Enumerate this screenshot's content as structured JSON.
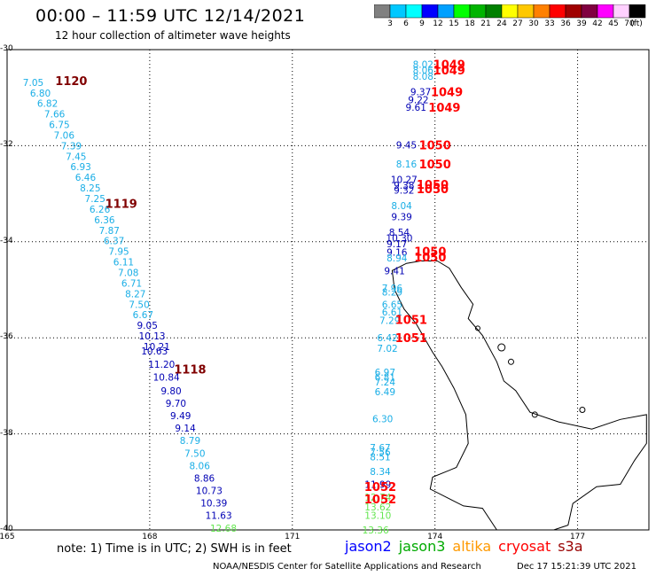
{
  "header": {
    "title": "00:00 – 11:59 UTC 12/14/2021",
    "subtitle": "12 hour collection of altimeter wave heights"
  },
  "colorbar": {
    "unit": "(ft)",
    "labels": [
      "3",
      "6",
      "9",
      "12",
      "15",
      "18",
      "21",
      "24",
      "27",
      "30",
      "33",
      "36",
      "39",
      "42",
      "45",
      "70"
    ],
    "colors": [
      "#808080",
      "#00c8ff",
      "#00ffff",
      "#0000ff",
      "#00a0ff",
      "#00ff00",
      "#00b400",
      "#008000",
      "#ffff00",
      "#ffc800",
      "#ff8000",
      "#ff0000",
      "#a00000",
      "#800040",
      "#ff00ff",
      "#ffd0ff",
      "#000000"
    ]
  },
  "axes": {
    "lat_labels": [
      "-30",
      "-32",
      "-34",
      "-36",
      "-38",
      "-40"
    ],
    "lon_labels": [
      "165",
      "168",
      "171",
      "174",
      "177"
    ]
  },
  "colors": {
    "light_blue": "#1aaee6",
    "blue": "#0000b4",
    "red": "#ff0000",
    "dark_red": "#800000",
    "green": "#64e650",
    "orange": "#ff9900",
    "jason2": "#0000ff",
    "jason3": "#00aa00",
    "altika": "#ff9900",
    "cryosat": "#ff0000",
    "s3a": "#990000"
  },
  "track_labels": [
    {
      "text": "1120",
      "lat": -30.65,
      "lon": 166.35,
      "color": "dark_red"
    },
    {
      "text": "1119",
      "lat": -33.2,
      "lon": 167.4,
      "color": "dark_red"
    },
    {
      "text": "1118",
      "lat": -36.65,
      "lon": 168.85,
      "color": "dark_red"
    },
    {
      "text": "1049",
      "lat": -30.3,
      "lon": 174.3,
      "color": "red"
    },
    {
      "text": "1049",
      "lat": -30.42,
      "lon": 174.3,
      "color": "red"
    },
    {
      "text": "1049",
      "lat": -30.88,
      "lon": 174.25,
      "color": "red"
    },
    {
      "text": "1049",
      "lat": -31.2,
      "lon": 174.2,
      "color": "red"
    },
    {
      "text": "1050",
      "lat": -31.98,
      "lon": 174.0,
      "color": "red"
    },
    {
      "text": "1050",
      "lat": -32.38,
      "lon": 174.0,
      "color": "red"
    },
    {
      "text": "1050",
      "lat": -32.8,
      "lon": 173.95,
      "color": "red"
    },
    {
      "text": "1050",
      "lat": -32.9,
      "lon": 173.95,
      "color": "red"
    },
    {
      "text": "1050",
      "lat": -34.2,
      "lon": 173.9,
      "color": "red"
    },
    {
      "text": "1050",
      "lat": -34.32,
      "lon": 173.9,
      "color": "red"
    },
    {
      "text": "1051",
      "lat": -35.62,
      "lon": 173.5,
      "color": "red"
    },
    {
      "text": "1051",
      "lat": -36.0,
      "lon": 173.5,
      "color": "red"
    },
    {
      "text": "1052",
      "lat": -39.1,
      "lon": 172.85,
      "color": "red"
    },
    {
      "text": "1052",
      "lat": -39.35,
      "lon": 172.85,
      "color": "red"
    }
  ],
  "points": [
    {
      "v": "7.05",
      "lat": -30.68,
      "lon": 165.55,
      "color": "light_blue"
    },
    {
      "v": "6.80",
      "lat": -30.9,
      "lon": 165.7,
      "color": "light_blue"
    },
    {
      "v": "6.82",
      "lat": -31.12,
      "lon": 165.85,
      "color": "light_blue"
    },
    {
      "v": "7.66",
      "lat": -31.34,
      "lon": 166.0,
      "color": "light_blue"
    },
    {
      "v": "6.75",
      "lat": -31.56,
      "lon": 166.1,
      "color": "light_blue"
    },
    {
      "v": "7.06",
      "lat": -31.78,
      "lon": 166.2,
      "color": "light_blue"
    },
    {
      "v": "7.39",
      "lat": -32.0,
      "lon": 166.35,
      "color": "light_blue"
    },
    {
      "v": "7.45",
      "lat": -32.22,
      "lon": 166.45,
      "color": "light_blue"
    },
    {
      "v": "6.93",
      "lat": -32.44,
      "lon": 166.55,
      "color": "light_blue"
    },
    {
      "v": "6.46",
      "lat": -32.66,
      "lon": 166.65,
      "color": "light_blue"
    },
    {
      "v": "8.25",
      "lat": -32.88,
      "lon": 166.75,
      "color": "light_blue"
    },
    {
      "v": "7.25",
      "lat": -33.1,
      "lon": 166.85,
      "color": "light_blue"
    },
    {
      "v": "6.26",
      "lat": -33.32,
      "lon": 166.95,
      "color": "light_blue"
    },
    {
      "v": "6.36",
      "lat": -33.54,
      "lon": 167.05,
      "color": "light_blue"
    },
    {
      "v": "7.87",
      "lat": -33.76,
      "lon": 167.15,
      "color": "light_blue"
    },
    {
      "v": "6.37",
      "lat": -33.98,
      "lon": 167.25,
      "color": "light_blue"
    },
    {
      "v": "7.95",
      "lat": -34.2,
      "lon": 167.35,
      "color": "light_blue"
    },
    {
      "v": "6.11",
      "lat": -34.42,
      "lon": 167.45,
      "color": "light_blue"
    },
    {
      "v": "7.08",
      "lat": -34.64,
      "lon": 167.55,
      "color": "light_blue"
    },
    {
      "v": "6.71",
      "lat": -34.86,
      "lon": 167.62,
      "color": "light_blue"
    },
    {
      "v": "8.27",
      "lat": -35.08,
      "lon": 167.7,
      "color": "light_blue"
    },
    {
      "v": "7.50",
      "lat": -35.3,
      "lon": 167.78,
      "color": "light_blue"
    },
    {
      "v": "6.67",
      "lat": -35.52,
      "lon": 167.86,
      "color": "light_blue"
    },
    {
      "v": "9.05",
      "lat": -35.74,
      "lon": 167.95,
      "color": "blue"
    },
    {
      "v": "10.13",
      "lat": -35.96,
      "lon": 168.05,
      "color": "blue"
    },
    {
      "v": "10.21",
      "lat": -36.18,
      "lon": 168.15,
      "color": "blue"
    },
    {
      "v": "10.63",
      "lat": -36.27,
      "lon": 168.1,
      "color": "blue"
    },
    {
      "v": "11.20",
      "lat": -36.55,
      "lon": 168.25,
      "color": "blue"
    },
    {
      "v": "10.84",
      "lat": -36.82,
      "lon": 168.35,
      "color": "blue"
    },
    {
      "v": "9.80",
      "lat": -37.1,
      "lon": 168.45,
      "color": "blue"
    },
    {
      "v": "9.70",
      "lat": -37.36,
      "lon": 168.55,
      "color": "blue"
    },
    {
      "v": "9.49",
      "lat": -37.62,
      "lon": 168.65,
      "color": "blue"
    },
    {
      "v": "9.14",
      "lat": -37.88,
      "lon": 168.75,
      "color": "blue"
    },
    {
      "v": "8.79",
      "lat": -38.14,
      "lon": 168.85,
      "color": "light_blue"
    },
    {
      "v": "7.50",
      "lat": -38.4,
      "lon": 168.95,
      "color": "light_blue"
    },
    {
      "v": "8.06",
      "lat": -38.66,
      "lon": 169.05,
      "color": "light_blue"
    },
    {
      "v": "8.86",
      "lat": -38.92,
      "lon": 169.15,
      "color": "blue"
    },
    {
      "v": "10.73",
      "lat": -39.18,
      "lon": 169.25,
      "color": "blue"
    },
    {
      "v": "10.39",
      "lat": -39.44,
      "lon": 169.35,
      "color": "blue"
    },
    {
      "v": "11.63",
      "lat": -39.7,
      "lon": 169.45,
      "color": "blue"
    },
    {
      "v": "12.68",
      "lat": -39.96,
      "lon": 169.55,
      "color": "green"
    },
    {
      "v": "8.02",
      "lat": -30.3,
      "lon": 173.75,
      "color": "light_blue"
    },
    {
      "v": "8.06",
      "lat": -30.42,
      "lon": 173.75,
      "color": "light_blue"
    },
    {
      "v": "8.08",
      "lat": -30.55,
      "lon": 173.75,
      "color": "light_blue"
    },
    {
      "v": "9.37",
      "lat": -30.88,
      "lon": 173.7,
      "color": "blue"
    },
    {
      "v": "9.22",
      "lat": -31.04,
      "lon": 173.65,
      "color": "blue"
    },
    {
      "v": "9.61",
      "lat": -31.2,
      "lon": 173.6,
      "color": "blue"
    },
    {
      "v": "9.45",
      "lat": -31.98,
      "lon": 173.4,
      "color": "blue"
    },
    {
      "v": "8.16",
      "lat": -32.38,
      "lon": 173.4,
      "color": "light_blue"
    },
    {
      "v": "10.27",
      "lat": -32.7,
      "lon": 173.35,
      "color": "blue"
    },
    {
      "v": "9.38",
      "lat": -32.82,
      "lon": 173.35,
      "color": "blue"
    },
    {
      "v": "9.32",
      "lat": -32.92,
      "lon": 173.35,
      "color": "blue"
    },
    {
      "v": "8.04",
      "lat": -33.25,
      "lon": 173.3,
      "color": "light_blue"
    },
    {
      "v": "9.39",
      "lat": -33.48,
      "lon": 173.3,
      "color": "blue"
    },
    {
      "v": "8.54",
      "lat": -33.8,
      "lon": 173.25,
      "color": "blue"
    },
    {
      "v": "10.30",
      "lat": -33.92,
      "lon": 173.25,
      "color": "blue"
    },
    {
      "v": "9.17",
      "lat": -34.04,
      "lon": 173.2,
      "color": "blue"
    },
    {
      "v": "9.16",
      "lat": -34.22,
      "lon": 173.2,
      "color": "blue"
    },
    {
      "v": "8.94",
      "lat": -34.34,
      "lon": 173.2,
      "color": "light_blue"
    },
    {
      "v": "9.41",
      "lat": -34.6,
      "lon": 173.15,
      "color": "blue"
    },
    {
      "v": "7.96",
      "lat": -34.96,
      "lon": 173.1,
      "color": "light_blue"
    },
    {
      "v": "8.29",
      "lat": -35.05,
      "lon": 173.1,
      "color": "light_blue"
    },
    {
      "v": "6.65",
      "lat": -35.3,
      "lon": 173.1,
      "color": "light_blue"
    },
    {
      "v": "6.61",
      "lat": -35.46,
      "lon": 173.1,
      "color": "light_blue"
    },
    {
      "v": "7.29",
      "lat": -35.64,
      "lon": 173.05,
      "color": "light_blue"
    },
    {
      "v": "6.42",
      "lat": -36.0,
      "lon": 173.0,
      "color": "light_blue"
    },
    {
      "v": "7.02",
      "lat": -36.22,
      "lon": 173.0,
      "color": "light_blue"
    },
    {
      "v": "6.97",
      "lat": -36.72,
      "lon": 172.95,
      "color": "light_blue"
    },
    {
      "v": "6.81",
      "lat": -36.82,
      "lon": 172.95,
      "color": "light_blue"
    },
    {
      "v": "7.24",
      "lat": -36.92,
      "lon": 172.95,
      "color": "light_blue"
    },
    {
      "v": "6.49",
      "lat": -37.12,
      "lon": 172.95,
      "color": "light_blue"
    },
    {
      "v": "6.30",
      "lat": -37.68,
      "lon": 172.9,
      "color": "light_blue"
    },
    {
      "v": "7.67",
      "lat": -38.28,
      "lon": 172.85,
      "color": "light_blue"
    },
    {
      "v": "7.56",
      "lat": -38.38,
      "lon": 172.85,
      "color": "light_blue"
    },
    {
      "v": "8.51",
      "lat": -38.48,
      "lon": 172.85,
      "color": "light_blue"
    },
    {
      "v": "8.34",
      "lat": -38.78,
      "lon": 172.85,
      "color": "light_blue"
    },
    {
      "v": "11.99",
      "lat": -39.05,
      "lon": 172.8,
      "color": "blue"
    },
    {
      "v": "12.74",
      "lat": -39.32,
      "lon": 172.8,
      "color": "green"
    },
    {
      "v": "13.62",
      "lat": -39.52,
      "lon": 172.8,
      "color": "green"
    },
    {
      "v": "13.10",
      "lat": -39.7,
      "lon": 172.8,
      "color": "green"
    },
    {
      "v": "13.36",
      "lat": -40.0,
      "lon": 172.75,
      "color": "green"
    }
  ],
  "note": "note:  1) Time is in UTC; 2) SWH is in feet",
  "legend": [
    {
      "label": "jason2",
      "color": "jason2"
    },
    {
      "label": "jason3",
      "color": "jason3"
    },
    {
      "label": "altika",
      "color": "altika"
    },
    {
      "label": "cryosat",
      "color": "cryosat"
    },
    {
      "label": "s3a",
      "color": "s3a"
    }
  ],
  "footer": {
    "credit": "NOAA/NESDIS Center for Satellite Applications and Research",
    "timestamp": "Dec 17 15:21:39 UTC 2021"
  }
}
